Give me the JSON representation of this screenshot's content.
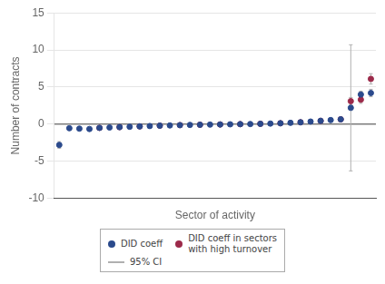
{
  "chart_data": {
    "type": "scatter",
    "xlabel": "Sector of activity",
    "ylabel": "Number of contracts",
    "categories": [
      null,
      null,
      null,
      null,
      null,
      null,
      null,
      null,
      null,
      null,
      null,
      null,
      null,
      null,
      null,
      null,
      null,
      null,
      null,
      null,
      null,
      null,
      null,
      null,
      null,
      null,
      null,
      null,
      null,
      null,
      null,
      null
    ],
    "series": [
      {
        "name": "DID coeff",
        "color": "#2b4a8c",
        "marker": "circle",
        "values": [
          -2.8,
          -0.55,
          -0.6,
          -0.65,
          -0.5,
          -0.45,
          -0.4,
          -0.35,
          -0.3,
          -0.25,
          -0.2,
          -0.17,
          -0.13,
          -0.1,
          -0.08,
          -0.06,
          -0.04,
          -0.02,
          0.0,
          0.02,
          0.05,
          0.08,
          0.12,
          0.18,
          0.25,
          0.35,
          0.45,
          0.55,
          0.65,
          2.2,
          4.0,
          4.2
        ],
        "error_low": [
          0.45,
          0.2,
          0.15,
          0.13,
          0.1,
          0.08,
          0.07,
          0.06,
          0.05,
          0.05,
          0.04,
          0.04,
          0.03,
          0.03,
          0.03,
          0.03,
          0.02,
          0.02,
          0.02,
          0.02,
          0.03,
          0.03,
          0.03,
          0.04,
          0.04,
          0.05,
          0.06,
          0.07,
          0.08,
          0.25,
          0.45,
          0.5
        ],
        "error_high": [
          0.45,
          0.2,
          0.15,
          0.13,
          0.1,
          0.08,
          0.07,
          0.06,
          0.05,
          0.05,
          0.04,
          0.04,
          0.03,
          0.03,
          0.03,
          0.03,
          0.02,
          0.02,
          0.02,
          0.02,
          0.03,
          0.03,
          0.03,
          0.04,
          0.04,
          0.05,
          0.06,
          0.07,
          0.08,
          0.25,
          0.45,
          0.5
        ]
      },
      {
        "name": "DID coeff in sectors\nwith high turnover",
        "color": "#9c2a4a",
        "marker": "circle",
        "values": [
          null,
          null,
          null,
          null,
          -0.5,
          null,
          -0.4,
          null,
          -0.3,
          null,
          -0.2,
          null,
          -0.13,
          null,
          -0.08,
          null,
          -0.04,
          null,
          0.0,
          null,
          0.05,
          null,
          0.12,
          null,
          0.25,
          null,
          0.45,
          null,
          0.65,
          3.1,
          3.3,
          6.1
        ],
        "error_low": [
          null,
          null,
          null,
          null,
          0.1,
          null,
          0.07,
          null,
          0.05,
          null,
          0.04,
          null,
          0.03,
          null,
          0.03,
          null,
          0.02,
          null,
          0.02,
          null,
          0.03,
          null,
          0.03,
          null,
          0.04,
          null,
          0.06,
          null,
          0.08,
          0.5,
          0.5,
          0.7
        ],
        "error_high": [
          null,
          null,
          null,
          null,
          0.1,
          null,
          0.07,
          null,
          0.05,
          null,
          0.04,
          null,
          0.03,
          null,
          0.03,
          null,
          0.02,
          null,
          0.02,
          null,
          0.03,
          null,
          0.03,
          null,
          0.04,
          null,
          0.06,
          null,
          0.08,
          0.5,
          0.5,
          0.7
        ]
      },
      {
        "name": "95% CI",
        "type": "errorbar",
        "color": "#b0b0b0",
        "line_style": "solid",
        "values": [
          null,
          null,
          null,
          null,
          null,
          null,
          null,
          null,
          null,
          null,
          null,
          null,
          null,
          null,
          null,
          null,
          null,
          null,
          null,
          null,
          null,
          null,
          null,
          null,
          null,
          null,
          null,
          null,
          null,
          2.2,
          null,
          null
        ],
        "error_low": [
          null,
          null,
          null,
          null,
          null,
          null,
          null,
          null,
          null,
          null,
          null,
          null,
          null,
          null,
          null,
          null,
          null,
          null,
          null,
          null,
          null,
          null,
          null,
          null,
          null,
          null,
          null,
          null,
          null,
          8.5,
          null,
          null
        ],
        "error_high": [
          null,
          null,
          null,
          null,
          null,
          null,
          null,
          null,
          null,
          null,
          null,
          null,
          null,
          null,
          null,
          null,
          null,
          null,
          null,
          null,
          null,
          null,
          null,
          null,
          null,
          null,
          null,
          null,
          null,
          8.5,
          null,
          null
        ]
      }
    ],
    "ylim": [
      -10,
      15
    ],
    "yticks": [
      -10,
      -5,
      0,
      5,
      10,
      15
    ],
    "grid": true,
    "legend": "bottom",
    "tick_labels": "y",
    "hlines": [
      {
        "value": 0,
        "color": "#444444"
      }
    ]
  }
}
